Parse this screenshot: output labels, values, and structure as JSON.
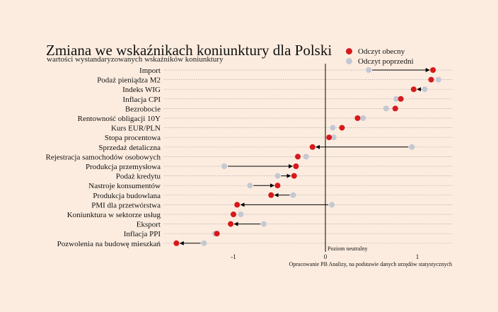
{
  "chart_data": {
    "type": "dot-arrow",
    "title": "Zmiana we wskaźnikach koniunktury dla Polski",
    "subtitle": "wartości wystandaryzowanych wskaźników koniunktury",
    "legend": {
      "placement": "top-right",
      "current_label": "Odczyt obecny",
      "previous_label": "Odczyt poprzedni"
    },
    "colors": {
      "current": "#d7191c",
      "previous": "#c4c8d3",
      "grid": "#aaaaaa",
      "zero_line": "#000000",
      "background": "#fcecdf"
    },
    "xlim": [
      -1.62,
      1.38
    ],
    "x_ticks": [
      -1,
      0,
      1
    ],
    "zero_line_label": "Poziom neutralny",
    "source_note": "Opracowanie PB Analizy, na podstawie danych urzędów statystycznych",
    "grid": true,
    "series": [
      {
        "category": "Import",
        "previous": 0.47,
        "current": 1.17
      },
      {
        "category": "Podaż pieniądza M2",
        "previous": 1.23,
        "current": 1.15
      },
      {
        "category": "Indeks WIG",
        "previous": 1.08,
        "current": 0.96
      },
      {
        "category": "Inflacja CPI",
        "previous": 0.77,
        "current": 0.82
      },
      {
        "category": "Bezrobocie",
        "previous": 0.66,
        "current": 0.76
      },
      {
        "category": "Rentowność obligacji 10Y",
        "previous": 0.41,
        "current": 0.35
      },
      {
        "category": "Kurs EUR/PLN",
        "previous": 0.08,
        "current": 0.18
      },
      {
        "category": "Stopa procentowa",
        "previous": 0.09,
        "current": 0.04
      },
      {
        "category": "Sprzedaż detaliczna",
        "previous": 0.94,
        "current": -0.14
      },
      {
        "category": "Rejestracja samochodów osobowych",
        "previous": -0.21,
        "current": -0.3
      },
      {
        "category": "Produkcja przemysłowa",
        "previous": -1.1,
        "current": -0.32
      },
      {
        "category": "Podaż kredytu",
        "previous": -0.52,
        "current": -0.34
      },
      {
        "category": "Nastroje konsumentów",
        "previous": -0.82,
        "current": -0.52
      },
      {
        "category": "Produkcja budowlana",
        "previous": -0.35,
        "current": -0.59
      },
      {
        "category": "PMI dla przetwórstwa",
        "previous": 0.07,
        "current": -0.96
      },
      {
        "category": "Koniunktura w sektorze usług",
        "previous": -0.92,
        "current": -1.0
      },
      {
        "category": "Eksport",
        "previous": -0.67,
        "current": -1.03
      },
      {
        "category": "Inflacja PPI",
        "previous": -1.2,
        "current": -1.18
      },
      {
        "category": "Pozwolenia na budowę mieszkań",
        "previous": -1.32,
        "current": -1.62
      }
    ]
  }
}
